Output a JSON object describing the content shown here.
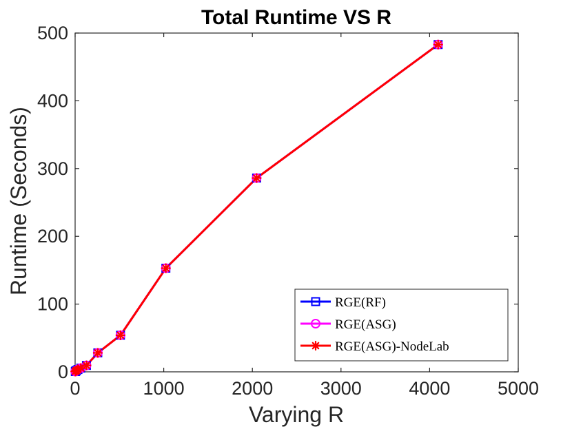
{
  "chart_data": {
    "type": "line",
    "title": "Total Runtime VS R",
    "xlabel": "Varying R",
    "ylabel": "Runtime (Seconds)",
    "xlim": [
      0,
      5000
    ],
    "ylim": [
      0,
      500
    ],
    "xticks": [
      0,
      1000,
      2000,
      3000,
      4000,
      5000
    ],
    "yticks": [
      0,
      100,
      200,
      300,
      400,
      500
    ],
    "grid": false,
    "legend_position": "bottom-right",
    "x": [
      2,
      4,
      8,
      16,
      32,
      64,
      128,
      256,
      512,
      1024,
      2048,
      4096
    ],
    "series": [
      {
        "name": "RGE(RF)",
        "color": "#0000ff",
        "marker": "square",
        "values": [
          0.5,
          0.8,
          1.2,
          2.0,
          3.5,
          5.5,
          9.5,
          28,
          54,
          153,
          286,
          483
        ]
      },
      {
        "name": "RGE(ASG)",
        "color": "#ff00ff",
        "marker": "circle",
        "values": [
          0.5,
          0.8,
          1.2,
          2.0,
          3.5,
          5.5,
          9.5,
          28,
          54,
          153,
          286,
          483
        ]
      },
      {
        "name": "RGE(ASG)-NodeLab",
        "color": "#ff0000",
        "marker": "asterisk",
        "values": [
          0.5,
          0.8,
          1.2,
          2.0,
          3.5,
          5.5,
          9.5,
          28,
          54,
          153,
          286,
          483
        ]
      }
    ]
  }
}
